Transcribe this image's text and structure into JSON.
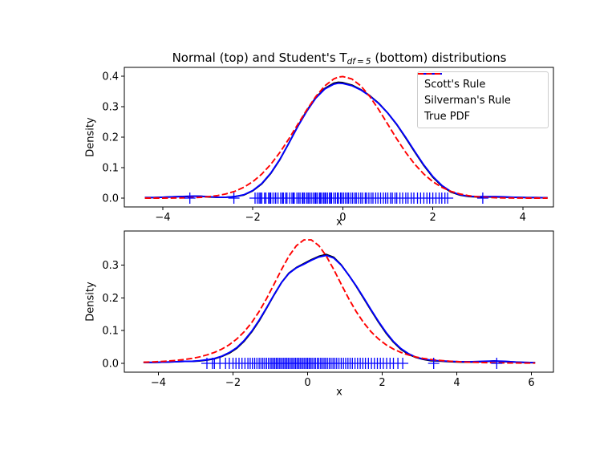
{
  "figure": {
    "background": "#ffffff"
  },
  "title": {
    "pre": "Normal (top) and Student's T",
    "sub": "df = 5",
    "post": " (bottom) distributions"
  },
  "legend": {
    "items": [
      {
        "label": "Scott's Rule",
        "color": "#000000",
        "linestyle": "solid"
      },
      {
        "label": "Silverman's Rule",
        "color": "#0000ff",
        "linestyle": "solid"
      },
      {
        "label": "True PDF",
        "color": "#ff0000",
        "linestyle": "dashed"
      }
    ]
  },
  "chart_data": [
    {
      "type": "line",
      "name": "normal-distribution-kde",
      "xlabel": "x",
      "ylabel": "Density",
      "xlim": [
        -4.8556,
        4.681
      ],
      "ylim": [
        -0.0289,
        0.4289
      ],
      "xticks": [
        -4,
        -2,
        0,
        2,
        4
      ],
      "xtick_labels": [
        "−4",
        "−2",
        "0",
        "2",
        "4"
      ],
      "yticks": [
        0.0,
        0.1,
        0.2,
        0.3,
        0.4
      ],
      "ytick_labels": [
        "0.0",
        "0.1",
        "0.2",
        "0.3",
        "0.4"
      ],
      "grid": false,
      "series": [
        {
          "name": "Scott's Rule",
          "color": "#000000",
          "style": "solid",
          "x": [
            -4.4,
            -4.2,
            -4.0,
            -3.8,
            -3.6,
            -3.45,
            -3.3,
            -3.15,
            -3.0,
            -2.8,
            -2.6,
            -2.4,
            -2.2,
            -2.0,
            -1.8,
            -1.6,
            -1.4,
            -1.2,
            -1.0,
            -0.8,
            -0.6,
            -0.4,
            -0.2,
            -0.1,
            0.0,
            0.2,
            0.4,
            0.6,
            0.8,
            1.0,
            1.2,
            1.4,
            1.6,
            1.8,
            2.0,
            2.2,
            2.4,
            2.6,
            2.8,
            3.0,
            3.2,
            3.4,
            3.6,
            3.8,
            4.1,
            4.3,
            4.55
          ],
          "y": [
            0.002,
            0.002,
            0.003,
            0.004,
            0.005,
            0.005,
            0.006,
            0.006,
            0.004,
            0.003,
            0.003,
            0.005,
            0.01,
            0.024,
            0.047,
            0.081,
            0.126,
            0.18,
            0.236,
            0.287,
            0.33,
            0.36,
            0.377,
            0.38,
            0.379,
            0.371,
            0.356,
            0.336,
            0.311,
            0.279,
            0.241,
            0.197,
            0.151,
            0.107,
            0.069,
            0.04,
            0.02,
            0.01,
            0.005,
            0.004,
            0.004,
            0.004,
            0.003,
            0.003,
            0.002,
            0.002,
            0.001
          ]
        },
        {
          "name": "Silverman's Rule",
          "color": "#0000ff",
          "style": "solid",
          "x": [
            -4.4,
            -4.2,
            -4.0,
            -3.8,
            -3.6,
            -3.45,
            -3.3,
            -3.15,
            -3.0,
            -2.8,
            -2.6,
            -2.4,
            -2.2,
            -2.0,
            -1.8,
            -1.6,
            -1.4,
            -1.2,
            -1.0,
            -0.8,
            -0.6,
            -0.4,
            -0.2,
            -0.1,
            0.0,
            0.2,
            0.4,
            0.6,
            0.8,
            1.0,
            1.2,
            1.4,
            1.6,
            1.8,
            2.0,
            2.2,
            2.4,
            2.6,
            2.8,
            3.0,
            3.2,
            3.4,
            3.6,
            3.8,
            4.1,
            4.3,
            4.55
          ],
          "y": [
            0.002,
            0.002,
            0.003,
            0.004,
            0.005,
            0.006,
            0.007,
            0.006,
            0.005,
            0.003,
            0.003,
            0.005,
            0.011,
            0.025,
            0.048,
            0.082,
            0.127,
            0.18,
            0.235,
            0.285,
            0.328,
            0.358,
            0.374,
            0.377,
            0.376,
            0.369,
            0.355,
            0.335,
            0.31,
            0.279,
            0.242,
            0.199,
            0.153,
            0.109,
            0.071,
            0.042,
            0.022,
            0.011,
            0.006,
            0.005,
            0.005,
            0.005,
            0.004,
            0.003,
            0.002,
            0.002,
            0.001
          ]
        },
        {
          "name": "True PDF",
          "color": "#ff0000",
          "style": "dashed",
          "x": [
            -4.4,
            -4.2,
            -4.0,
            -3.8,
            -3.6,
            -3.45,
            -3.3,
            -3.15,
            -3.0,
            -2.8,
            -2.6,
            -2.4,
            -2.2,
            -2.0,
            -1.8,
            -1.6,
            -1.4,
            -1.2,
            -1.0,
            -0.8,
            -0.6,
            -0.4,
            -0.2,
            -0.1,
            0.0,
            0.2,
            0.4,
            0.6,
            0.8,
            1.0,
            1.2,
            1.4,
            1.6,
            1.8,
            2.0,
            2.2,
            2.4,
            2.6,
            2.8,
            3.0,
            3.2,
            3.4,
            3.6,
            3.8,
            4.1,
            4.3,
            4.55
          ],
          "y": [
            0.0,
            0.0001,
            0.0001,
            0.0003,
            0.0006,
            0.001,
            0.0017,
            0.0028,
            0.0044,
            0.0079,
            0.0136,
            0.0224,
            0.0355,
            0.054,
            0.079,
            0.1109,
            0.1497,
            0.1942,
            0.242,
            0.2897,
            0.3332,
            0.3683,
            0.391,
            0.397,
            0.3989,
            0.391,
            0.3683,
            0.3332,
            0.2897,
            0.242,
            0.1942,
            0.1497,
            0.1109,
            0.079,
            0.054,
            0.0355,
            0.0224,
            0.0136,
            0.0079,
            0.0044,
            0.0024,
            0.0012,
            0.0006,
            0.0003,
            0.0001,
            0.0,
            0.0
          ]
        }
      ],
      "rug": {
        "color": "#0000ff",
        "marker": "plus",
        "x": [
          -3.4,
          -2.42,
          -1.95,
          -1.9,
          -1.86,
          -1.83,
          -1.8,
          -1.74,
          -1.71,
          -1.65,
          -1.62,
          -1.6,
          -1.55,
          -1.5,
          -1.49,
          -1.44,
          -1.38,
          -1.34,
          -1.32,
          -1.27,
          -1.24,
          -1.18,
          -1.13,
          -1.1,
          -1.08,
          -1.02,
          -0.98,
          -0.95,
          -0.9,
          -0.88,
          -0.85,
          -0.8,
          -0.77,
          -0.74,
          -0.7,
          -0.66,
          -0.62,
          -0.6,
          -0.57,
          -0.52,
          -0.5,
          -0.47,
          -0.43,
          -0.4,
          -0.38,
          -0.34,
          -0.3,
          -0.27,
          -0.25,
          -0.2,
          -0.16,
          -0.12,
          -0.1,
          -0.05,
          -0.02,
          0.02,
          0.06,
          0.1,
          0.13,
          0.18,
          0.22,
          0.27,
          0.3,
          0.35,
          0.4,
          0.44,
          0.5,
          0.53,
          0.58,
          0.63,
          0.67,
          0.73,
          0.78,
          0.84,
          0.9,
          0.95,
          1.0,
          1.06,
          1.1,
          1.16,
          1.2,
          1.27,
          1.33,
          1.4,
          1.45,
          1.52,
          1.58,
          1.66,
          1.73,
          1.8,
          1.87,
          1.93,
          2.0,
          2.07,
          2.14,
          2.2,
          2.27,
          2.33,
          3.11
        ]
      }
    },
    {
      "type": "line",
      "name": "student-t-df5-kde",
      "xlabel": "x",
      "ylabel": "Density",
      "xlim": [
        -4.914,
        6.59
      ],
      "ylim": [
        -0.027,
        0.4045
      ],
      "xticks": [
        -4,
        -2,
        0,
        2,
        4,
        6
      ],
      "xtick_labels": [
        "−4",
        "−2",
        "0",
        "2",
        "4",
        "6"
      ],
      "yticks": [
        0.0,
        0.1,
        0.2,
        0.3
      ],
      "ytick_labels": [
        "0.0",
        "0.1",
        "0.2",
        "0.3"
      ],
      "grid": false,
      "series": [
        {
          "name": "Scott's Rule",
          "color": "#000000",
          "style": "solid",
          "x": [
            -4.4,
            -4.1,
            -3.8,
            -3.5,
            -3.3,
            -3.1,
            -2.9,
            -2.7,
            -2.5,
            -2.3,
            -2.1,
            -1.9,
            -1.7,
            -1.5,
            -1.3,
            -1.1,
            -0.9,
            -0.7,
            -0.5,
            -0.3,
            -0.1,
            0.1,
            0.3,
            0.5,
            0.7,
            0.9,
            1.1,
            1.3,
            1.5,
            1.7,
            1.9,
            2.1,
            2.3,
            2.5,
            2.7,
            2.9,
            3.1,
            3.3,
            3.5,
            3.8,
            4.1,
            4.4,
            4.7,
            5.0,
            5.3,
            5.6,
            5.9,
            6.1
          ],
          "y": [
            0.003,
            0.003,
            0.004,
            0.005,
            0.006,
            0.006,
            0.007,
            0.01,
            0.014,
            0.021,
            0.031,
            0.046,
            0.068,
            0.096,
            0.13,
            0.169,
            0.209,
            0.247,
            0.276,
            0.293,
            0.305,
            0.317,
            0.327,
            0.333,
            0.324,
            0.301,
            0.27,
            0.236,
            0.199,
            0.162,
            0.126,
            0.093,
            0.065,
            0.043,
            0.028,
            0.018,
            0.012,
            0.008,
            0.007,
            0.005,
            0.004,
            0.004,
            0.005,
            0.007,
            0.005,
            0.004,
            0.002,
            0.002
          ]
        },
        {
          "name": "Silverman's Rule",
          "color": "#0000ff",
          "style": "solid",
          "x": [
            -4.4,
            -4.1,
            -3.8,
            -3.5,
            -3.3,
            -3.1,
            -2.9,
            -2.7,
            -2.5,
            -2.3,
            -2.1,
            -1.9,
            -1.7,
            -1.5,
            -1.3,
            -1.1,
            -0.9,
            -0.7,
            -0.5,
            -0.3,
            -0.1,
            0.1,
            0.3,
            0.5,
            0.7,
            0.9,
            1.1,
            1.3,
            1.5,
            1.7,
            1.9,
            2.1,
            2.3,
            2.5,
            2.7,
            2.9,
            3.1,
            3.3,
            3.5,
            3.8,
            4.1,
            4.4,
            4.7,
            5.0,
            5.3,
            5.6,
            5.9,
            6.1
          ],
          "y": [
            0.003,
            0.003,
            0.004,
            0.005,
            0.006,
            0.006,
            0.008,
            0.011,
            0.015,
            0.022,
            0.033,
            0.048,
            0.07,
            0.098,
            0.132,
            0.17,
            0.21,
            0.247,
            0.275,
            0.292,
            0.303,
            0.315,
            0.325,
            0.33,
            0.322,
            0.3,
            0.27,
            0.237,
            0.201,
            0.164,
            0.128,
            0.095,
            0.067,
            0.045,
            0.03,
            0.019,
            0.013,
            0.01,
            0.008,
            0.006,
            0.005,
            0.005,
            0.006,
            0.007,
            0.006,
            0.004,
            0.003,
            0.002
          ]
        },
        {
          "name": "True PDF",
          "color": "#ff0000",
          "style": "dashed",
          "x": [
            -4.4,
            -4.1,
            -3.8,
            -3.5,
            -3.3,
            -3.1,
            -2.9,
            -2.7,
            -2.5,
            -2.3,
            -2.1,
            -1.9,
            -1.7,
            -1.5,
            -1.3,
            -1.1,
            -0.9,
            -0.7,
            -0.5,
            -0.3,
            -0.1,
            0.1,
            0.3,
            0.5,
            0.7,
            0.9,
            1.1,
            1.3,
            1.5,
            1.7,
            1.9,
            2.1,
            2.3,
            2.5,
            2.7,
            2.9,
            3.1,
            3.3,
            3.5,
            3.8,
            4.1,
            4.4,
            4.7,
            5.0,
            5.3,
            5.6,
            5.9,
            6.1
          ],
          "y": [
            0.0033,
            0.0046,
            0.0065,
            0.0093,
            0.0118,
            0.0152,
            0.0197,
            0.0256,
            0.0333,
            0.0436,
            0.0569,
            0.0744,
            0.0966,
            0.1245,
            0.1585,
            0.1981,
            0.2419,
            0.2867,
            0.3279,
            0.3598,
            0.3774,
            0.3774,
            0.3598,
            0.3279,
            0.2867,
            0.2419,
            0.1981,
            0.1585,
            0.1245,
            0.0966,
            0.0744,
            0.0569,
            0.0436,
            0.0333,
            0.0256,
            0.0197,
            0.0152,
            0.0118,
            0.0093,
            0.0065,
            0.0046,
            0.0033,
            0.0024,
            0.0018,
            0.0013,
            0.001,
            0.0008,
            0.0006
          ]
        }
      ],
      "rug": {
        "color": "#0000ff",
        "marker": "plus",
        "x": [
          -2.7,
          -2.55,
          -2.5,
          -2.35,
          -2.2,
          -2.1,
          -2.0,
          -1.92,
          -1.84,
          -1.76,
          -1.68,
          -1.6,
          -1.54,
          -1.48,
          -1.42,
          -1.36,
          -1.3,
          -1.25,
          -1.2,
          -1.15,
          -1.1,
          -1.05,
          -1.0,
          -0.96,
          -0.92,
          -0.88,
          -0.84,
          -0.8,
          -0.76,
          -0.72,
          -0.68,
          -0.64,
          -0.6,
          -0.56,
          -0.52,
          -0.48,
          -0.44,
          -0.4,
          -0.36,
          -0.32,
          -0.28,
          -0.24,
          -0.2,
          -0.16,
          -0.12,
          -0.08,
          -0.04,
          0.0,
          0.04,
          0.08,
          0.12,
          0.17,
          0.21,
          0.26,
          0.3,
          0.35,
          0.39,
          0.44,
          0.48,
          0.53,
          0.58,
          0.63,
          0.68,
          0.73,
          0.78,
          0.84,
          0.9,
          0.96,
          1.02,
          1.08,
          1.14,
          1.2,
          1.27,
          1.34,
          1.41,
          1.48,
          1.55,
          1.63,
          1.71,
          1.79,
          1.87,
          1.95,
          2.03,
          2.12,
          2.21,
          2.3,
          2.42,
          2.55,
          3.38,
          5.07
        ]
      }
    }
  ]
}
